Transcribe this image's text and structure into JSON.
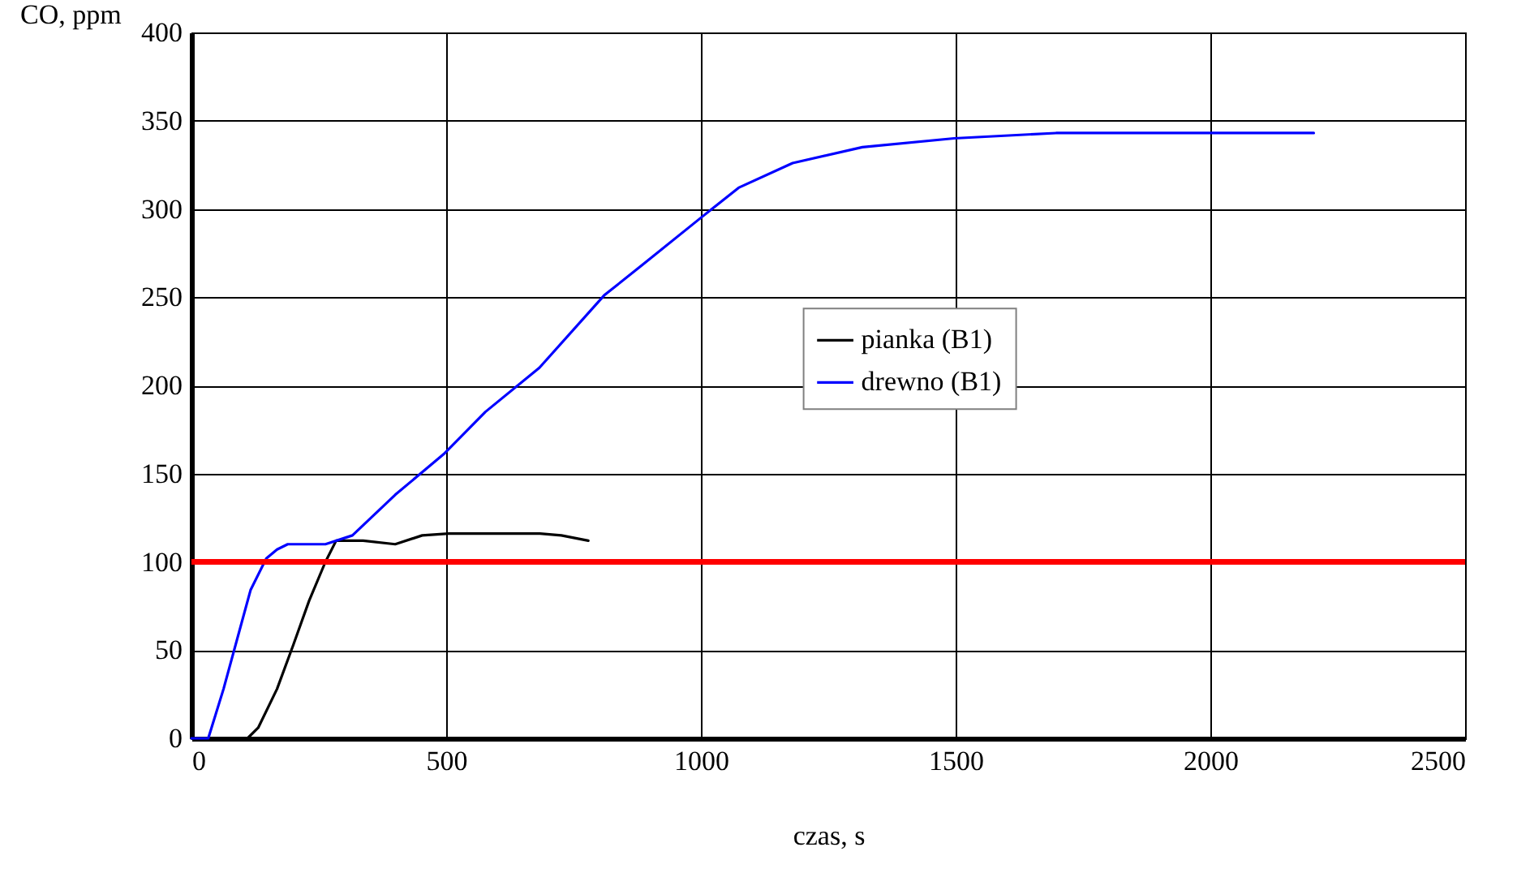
{
  "chart_data": {
    "type": "line",
    "xlabel": "czas, s",
    "ylabel": "CO, ppm",
    "xlim": [
      0,
      2500
    ],
    "xticks": [
      0,
      500,
      1000,
      1500,
      2000,
      2500
    ],
    "ylim": [
      0,
      400
    ],
    "yticks": [
      0,
      50,
      100,
      150,
      200,
      250,
      300,
      350,
      400
    ],
    "grid": true,
    "legend": "right",
    "line_style": "solid",
    "marker": "none",
    "series": [
      {
        "name": "pianka (B1)",
        "color": "#000000",
        "x": [
          0,
          110,
          131,
          168,
          200,
          231,
          263,
          284,
          337,
          400,
          453,
          505,
          579,
          684,
          726,
          779
        ],
        "values": [
          0,
          0,
          6,
          28,
          53,
          78,
          100,
          112,
          112,
          110,
          115,
          116,
          116,
          116,
          115,
          112
        ]
      },
      {
        "name": "drewno (B1)",
        "color": "#0000ff",
        "x": [
          0,
          33,
          63,
          116,
          147,
          168,
          189,
          263,
          316,
          400,
          495,
          577,
          683,
          810,
          884,
          1000,
          1074,
          1180,
          1317,
          1497,
          1697,
          2203
        ],
        "values": [
          0,
          0,
          28,
          84,
          102,
          107,
          110,
          110,
          115,
          138,
          161,
          185,
          210,
          251,
          268,
          295,
          312,
          326,
          335,
          340,
          343,
          343
        ]
      }
    ],
    "ref_lines": [
      {
        "axis": "y",
        "value": 100,
        "color": "#ff0000",
        "line_style": "solid"
      }
    ]
  }
}
